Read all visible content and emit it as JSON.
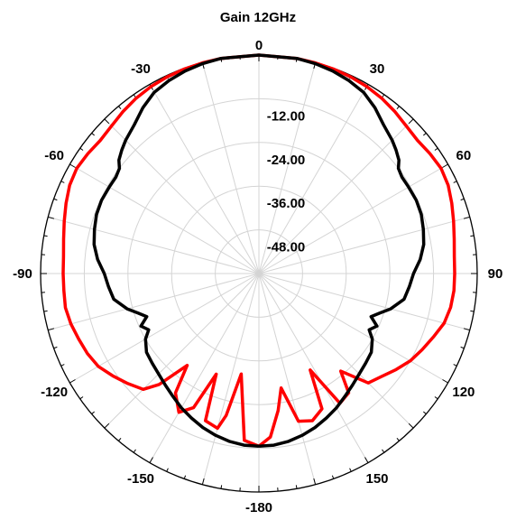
{
  "chart_data": {
    "type": "polar-line",
    "title": "Gain 12GHz",
    "radial_range": [
      -60,
      0
    ],
    "radial_ticks": [
      {
        "value": -12,
        "label": "-12.00"
      },
      {
        "value": -24,
        "label": "-24.00"
      },
      {
        "value": -36,
        "label": "-36.00"
      },
      {
        "value": -48,
        "label": "-48.00"
      }
    ],
    "angle_labels": [
      {
        "angle": 0,
        "label": "0"
      },
      {
        "angle": 30,
        "label": "30"
      },
      {
        "angle": 60,
        "label": "60"
      },
      {
        "angle": 90,
        "label": "90"
      },
      {
        "angle": 120,
        "label": "120"
      },
      {
        "angle": 150,
        "label": "150"
      },
      {
        "angle": 180,
        "label": "-180"
      },
      {
        "angle": -150,
        "label": "-150"
      },
      {
        "angle": -120,
        "label": "-120"
      },
      {
        "angle": -90,
        "label": "-90"
      },
      {
        "angle": -60,
        "label": "-60"
      },
      {
        "angle": -30,
        "label": "-30"
      }
    ],
    "grid": true,
    "series": [
      {
        "color": "#ff0000",
        "points": [
          [
            -180,
            -12.6
          ],
          [
            -175,
            -14
          ],
          [
            -170,
            -32
          ],
          [
            -167,
            -20
          ],
          [
            -165,
            -16
          ],
          [
            -160,
            -17
          ],
          [
            -157,
            -30
          ],
          [
            -154,
            -19
          ],
          [
            -150,
            -16
          ],
          [
            -145,
            -20
          ],
          [
            -142,
            -28
          ],
          [
            -138,
            -19
          ],
          [
            -135,
            -15
          ],
          [
            -130,
            -13
          ],
          [
            -125,
            -11
          ],
          [
            -120,
            -9
          ],
          [
            -115,
            -8
          ],
          [
            -110,
            -7.3
          ],
          [
            -105,
            -6.5
          ],
          [
            -100,
            -6
          ],
          [
            -95,
            -6.2
          ],
          [
            -90,
            -6.2
          ],
          [
            -85,
            -6.1
          ],
          [
            -80,
            -5.5
          ],
          [
            -75,
            -4.6
          ],
          [
            -70,
            -3.6
          ],
          [
            -65,
            -2.6
          ],
          [
            -60,
            -2.2
          ],
          [
            -55,
            -2.6
          ],
          [
            -50,
            -3.1
          ],
          [
            -45,
            -2.7
          ],
          [
            -40,
            -1.9
          ],
          [
            -35,
            -1.2
          ],
          [
            -30,
            -0.7
          ],
          [
            -25,
            -0.4
          ],
          [
            -20,
            -0.2
          ],
          [
            -15,
            -0.1
          ],
          [
            -10,
            0
          ],
          [
            0,
            0
          ],
          [
            10,
            0
          ],
          [
            15,
            -0.1
          ],
          [
            20,
            -0.2
          ],
          [
            25,
            -0.4
          ],
          [
            30,
            -0.7
          ],
          [
            35,
            -1.2
          ],
          [
            40,
            -1.9
          ],
          [
            45,
            -2.7
          ],
          [
            50,
            -3.1
          ],
          [
            55,
            -2.6
          ],
          [
            60,
            -2.2
          ],
          [
            65,
            -2.6
          ],
          [
            70,
            -3.6
          ],
          [
            75,
            -4.6
          ],
          [
            80,
            -5.5
          ],
          [
            85,
            -6.1
          ],
          [
            90,
            -6.2
          ],
          [
            95,
            -6.2
          ],
          [
            100,
            -6.5
          ],
          [
            105,
            -7.3
          ],
          [
            110,
            -9
          ],
          [
            115,
            -10.5
          ],
          [
            120,
            -12
          ],
          [
            125,
            -14
          ],
          [
            130,
            -16
          ],
          [
            135,
            -17.5
          ],
          [
            140,
            -25
          ],
          [
            143,
            -19
          ],
          [
            148,
            -18
          ],
          [
            152,
            -30
          ],
          [
            155,
            -19
          ],
          [
            160,
            -17
          ],
          [
            165,
            -18
          ],
          [
            169,
            -28
          ],
          [
            172,
            -22
          ],
          [
            176,
            -15
          ],
          [
            180,
            -12.6
          ]
        ]
      },
      {
        "color": "#000000",
        "points": [
          [
            -180,
            -12.6
          ],
          [
            -175,
            -12.7
          ],
          [
            -170,
            -13.2
          ],
          [
            -165,
            -14
          ],
          [
            -160,
            -15
          ],
          [
            -155,
            -16.2
          ],
          [
            -150,
            -17.4
          ],
          [
            -145,
            -18.8
          ],
          [
            -140,
            -20
          ],
          [
            -135,
            -21
          ],
          [
            -130,
            -21.7
          ],
          [
            -125,
            -22.3
          ],
          [
            -120,
            -24
          ],
          [
            -117,
            -26
          ],
          [
            -114,
            -24.5
          ],
          [
            -111,
            -27
          ],
          [
            -108,
            -25
          ],
          [
            -105,
            -22.5
          ],
          [
            -100,
            -19.5
          ],
          [
            -95,
            -18.5
          ],
          [
            -90,
            -17.5
          ],
          [
            -85,
            -15.5
          ],
          [
            -80,
            -14
          ],
          [
            -75,
            -13.2
          ],
          [
            -70,
            -12.5
          ],
          [
            -65,
            -12.3
          ],
          [
            -60,
            -12.5
          ],
          [
            -56,
            -12.6
          ],
          [
            -53,
            -12
          ],
          [
            -51,
            -10.5
          ],
          [
            -48,
            -9.3
          ],
          [
            -45,
            -8.2
          ],
          [
            -40,
            -6.7
          ],
          [
            -35,
            -4.4
          ],
          [
            -30,
            -2.5
          ],
          [
            -25,
            -1.5
          ],
          [
            -20,
            -0.8
          ],
          [
            -15,
            -0.3
          ],
          [
            -10,
            0
          ],
          [
            0,
            0
          ],
          [
            10,
            0
          ],
          [
            15,
            -0.3
          ],
          [
            20,
            -0.8
          ],
          [
            25,
            -1.5
          ],
          [
            30,
            -2.5
          ],
          [
            35,
            -4.4
          ],
          [
            40,
            -6.7
          ],
          [
            45,
            -8.2
          ],
          [
            48,
            -9.3
          ],
          [
            51,
            -10.5
          ],
          [
            53,
            -12
          ],
          [
            56,
            -12.6
          ],
          [
            60,
            -12.5
          ],
          [
            65,
            -12.3
          ],
          [
            70,
            -12.5
          ],
          [
            75,
            -13.2
          ],
          [
            80,
            -14
          ],
          [
            85,
            -15.5
          ],
          [
            90,
            -17.5
          ],
          [
            95,
            -18.5
          ],
          [
            100,
            -19.5
          ],
          [
            105,
            -22.5
          ],
          [
            108,
            -25
          ],
          [
            111,
            -27
          ],
          [
            114,
            -24.5
          ],
          [
            117,
            -26
          ],
          [
            120,
            -24
          ],
          [
            125,
            -22.3
          ],
          [
            130,
            -21.7
          ],
          [
            135,
            -21
          ],
          [
            140,
            -20
          ],
          [
            145,
            -18.8
          ],
          [
            150,
            -17.4
          ],
          [
            155,
            -16.2
          ],
          [
            160,
            -15
          ],
          [
            165,
            -14
          ],
          [
            170,
            -13.2
          ],
          [
            175,
            -12.7
          ],
          [
            180,
            -12.6
          ]
        ]
      }
    ]
  }
}
